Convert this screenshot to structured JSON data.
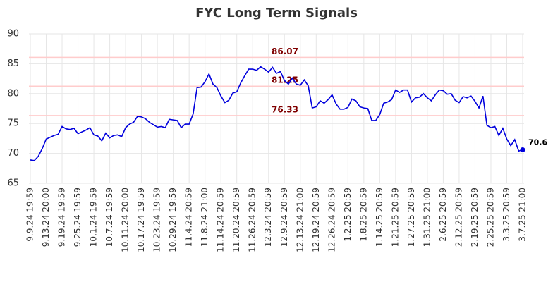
{
  "chart_data": {
    "type": "line",
    "title": "FYC Long Term Signals",
    "categories": [
      "9.9.24 19:59",
      null,
      null,
      null,
      "9.13.24 20:00",
      null,
      null,
      null,
      "9.19.24 19:59",
      null,
      null,
      null,
      "9.25.24 19:59",
      null,
      null,
      null,
      "10.1.24 19:59",
      null,
      null,
      null,
      "10.7.24 19:59",
      null,
      null,
      null,
      "10.11.24 20:00",
      null,
      null,
      null,
      "10.17.24 19:59",
      null,
      null,
      null,
      "10.23.24 19:59",
      null,
      null,
      null,
      "10.29.24 19:59",
      null,
      null,
      null,
      "11.4.24 20:59",
      null,
      null,
      null,
      "11.8.24 21:00",
      null,
      null,
      null,
      "11.14.24 20:59",
      null,
      null,
      null,
      "11.20.24 20:59",
      null,
      null,
      null,
      "11.26.24 20:59",
      null,
      null,
      null,
      "12.3.24 20:59",
      null,
      null,
      null,
      "12.9.24 20:59",
      null,
      null,
      null,
      "12.13.24 21:00",
      null,
      null,
      null,
      "12.19.24 20:59",
      null,
      null,
      null,
      "12.26.24 20:59",
      null,
      null,
      null,
      "1.2.25 20:59",
      null,
      null,
      null,
      "1.8.25 20:59",
      null,
      null,
      null,
      "1.14.25 20:59",
      null,
      null,
      null,
      "1.21.25 20:59",
      null,
      null,
      null,
      "1.27.25 20:59",
      null,
      null,
      null,
      "1.31.25 21:00",
      null,
      null,
      null,
      "2.6.25 20:59",
      null,
      null,
      null,
      "2.12.25 20:59",
      null,
      null,
      null,
      "2.19.25 20:59",
      null,
      null,
      null,
      "2.25.25 20:59",
      null,
      null,
      null,
      "3.3.25 20:59",
      null,
      null,
      null,
      "3.7.25 21:00"
    ],
    "series": [
      {
        "name": "FYC",
        "color": "#0000dd",
        "values": [
          68.9,
          68.8,
          69.5,
          70.8,
          72.4,
          72.7,
          73.0,
          73.2,
          74.5,
          74.1,
          74.0,
          74.2,
          73.3,
          73.6,
          73.9,
          74.3,
          73.1,
          72.9,
          72.1,
          73.4,
          72.6,
          73.0,
          73.1,
          72.8,
          74.3,
          74.9,
          75.2,
          76.2,
          76.1,
          75.8,
          75.2,
          74.8,
          74.4,
          74.5,
          74.3,
          75.7,
          75.6,
          75.5,
          74.3,
          74.9,
          74.9,
          76.6,
          81.0,
          81.1,
          82.0,
          83.3,
          81.6,
          81.0,
          79.6,
          78.5,
          78.9,
          80.1,
          80.3,
          81.8,
          83.0,
          84.1,
          84.1,
          83.9,
          84.5,
          84.1,
          83.6,
          84.4,
          83.4,
          83.7,
          82.2,
          81.6,
          82.6,
          81.6,
          81.4,
          82.3,
          81.3,
          77.6,
          77.8,
          78.8,
          78.4,
          79.0,
          79.8,
          78.3,
          77.4,
          77.4,
          77.7,
          79.1,
          78.8,
          77.8,
          77.6,
          77.5,
          75.5,
          75.5,
          76.5,
          78.4,
          78.6,
          79.0,
          80.6,
          80.2,
          80.6,
          80.6,
          78.6,
          79.3,
          79.4,
          80.0,
          79.3,
          78.8,
          79.8,
          80.6,
          80.5,
          79.9,
          80.0,
          78.9,
          78.5,
          79.5,
          79.3,
          79.6,
          78.7,
          77.6,
          79.6,
          74.7,
          74.3,
          74.5,
          73.0,
          74.2,
          72.4,
          71.3,
          72.3,
          70.4,
          70.6
        ]
      }
    ],
    "hlines": [
      86.07,
      81.25,
      76.33
    ],
    "hline_color": "#ffcccc",
    "hline_label_color": "#800000",
    "ylim": [
      65,
      90
    ],
    "yticks": [
      65,
      70,
      75,
      80,
      85,
      90
    ],
    "grid": true
  }
}
